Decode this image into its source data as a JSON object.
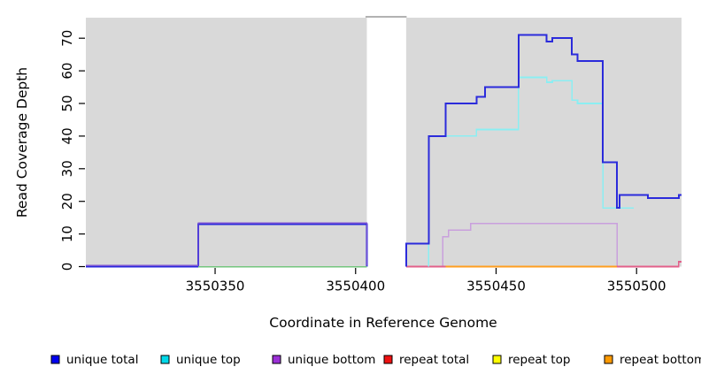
{
  "chart_data": {
    "type": "line",
    "subtype": "step-coverage-plot",
    "title": "",
    "xlabel": "Coordinate in Reference Genome",
    "ylabel": "Read Coverage Depth",
    "xrange": [
      3550304,
      3550516
    ],
    "ylim": [
      0,
      76
    ],
    "grid": "off",
    "panel_background": "#d9d9d9",
    "no_data_gap": {
      "from": 3550404,
      "to": 3550418,
      "fill": "#ffffff",
      "cap_color": "#999999"
    },
    "x_axis": {
      "ticks": [
        {
          "value": 3550350,
          "label": "3550350"
        },
        {
          "value": 3550400,
          "label": "3550400"
        },
        {
          "value": 3550450,
          "label": "3550450"
        },
        {
          "value": 3550500,
          "label": "3550500"
        }
      ]
    },
    "y_axis": {
      "ticks": [
        0,
        10,
        20,
        30,
        40,
        50,
        60,
        70
      ]
    },
    "legend": {
      "position": "bottom",
      "items": [
        {
          "label": "unique total",
          "color": "#0000ee"
        },
        {
          "label": "unique top",
          "color": "#00d8e8"
        },
        {
          "label": "unique bottom",
          "color": "#9b30d6"
        },
        {
          "label": "repeat total",
          "color": "#ee1111"
        },
        {
          "label": "repeat top",
          "color": "#ffff00"
        },
        {
          "label": "repeat bottom",
          "color": "#ff9a00"
        }
      ]
    },
    "baseline_note": "flat segments at depth 0 appear color-blended where several series overlap",
    "lines": [
      {
        "name": "unique-total-left",
        "color": "#2b2bdb",
        "width": 2,
        "points": [
          [
            3550304,
            0
          ],
          [
            3550344,
            0
          ],
          [
            3550344,
            13
          ],
          [
            3550404,
            13
          ],
          [
            3550404,
            0
          ]
        ]
      },
      {
        "name": "unique-bottom-left",
        "color": "#7a52d4",
        "width": 1.4,
        "dy": -1.2,
        "points": [
          [
            3550304,
            0
          ],
          [
            3550344,
            0
          ],
          [
            3550344,
            13
          ],
          [
            3550404,
            13
          ],
          [
            3550404,
            0
          ]
        ]
      },
      {
        "name": "baseline-blend-green-top-strands",
        "color": "#74c67e",
        "width": 1.5,
        "points": [
          [
            3550344,
            0
          ],
          [
            3550404,
            0
          ]
        ]
      },
      {
        "name": "baseline-blend-pink-left",
        "color": "#e2608a",
        "width": 1.6,
        "points": [
          [
            3550418,
            0
          ],
          [
            3550432,
            0
          ]
        ]
      },
      {
        "name": "repeat-bottom-baseline",
        "color": "#ff9e1f",
        "width": 1.8,
        "points": [
          [
            3550432,
            0
          ],
          [
            3550493,
            0
          ]
        ]
      },
      {
        "name": "baseline-blend-pink-right",
        "color": "#e2608a",
        "width": 1.6,
        "points": [
          [
            3550493,
            0
          ],
          [
            3550515,
            0
          ],
          [
            3550515,
            1.5
          ],
          [
            3550516,
            1.5
          ]
        ]
      },
      {
        "name": "unique-bottom-right",
        "color": "#c9a0dd",
        "width": 1.5,
        "dy": -0.8,
        "points": [
          [
            3550431,
            0
          ],
          [
            3550431,
            9
          ],
          [
            3550433,
            9
          ],
          [
            3550433,
            11
          ],
          [
            3550441,
            11
          ],
          [
            3550441,
            13
          ],
          [
            3550493,
            13
          ],
          [
            3550493,
            0
          ]
        ]
      },
      {
        "name": "unique-top",
        "color": "#8beef2",
        "width": 1.6,
        "points": [
          [
            3550426,
            0
          ],
          [
            3550426,
            40
          ],
          [
            3550443,
            40
          ],
          [
            3550443,
            42
          ],
          [
            3550458,
            42
          ],
          [
            3550458,
            58
          ],
          [
            3550468,
            58
          ],
          [
            3550468,
            56.5
          ],
          [
            3550470,
            56.5
          ],
          [
            3550470,
            57
          ],
          [
            3550477,
            57
          ],
          [
            3550477,
            51
          ],
          [
            3550479,
            51
          ],
          [
            3550479,
            50
          ],
          [
            3550488,
            50
          ],
          [
            3550488,
            18
          ],
          [
            3550499,
            18
          ]
        ]
      },
      {
        "name": "unique-total-right",
        "color": "#2b2bdb",
        "width": 2,
        "points": [
          [
            3550418,
            0
          ],
          [
            3550418,
            7
          ],
          [
            3550426,
            7
          ],
          [
            3550426,
            40
          ],
          [
            3550432,
            40
          ],
          [
            3550432,
            50
          ],
          [
            3550443,
            50
          ],
          [
            3550443,
            52
          ],
          [
            3550446,
            52
          ],
          [
            3550446,
            55
          ],
          [
            3550458,
            55
          ],
          [
            3550458,
            71
          ],
          [
            3550468,
            71
          ],
          [
            3550468,
            69
          ],
          [
            3550470,
            69
          ],
          [
            3550470,
            70
          ],
          [
            3550477,
            70
          ],
          [
            3550477,
            65
          ],
          [
            3550479,
            65
          ],
          [
            3550479,
            63
          ],
          [
            3550488,
            63
          ],
          [
            3550488,
            32
          ],
          [
            3550493,
            32
          ],
          [
            3550493,
            18
          ],
          [
            3550494,
            18
          ],
          [
            3550494,
            22
          ],
          [
            3550504,
            22
          ],
          [
            3550504,
            21
          ],
          [
            3550515,
            21
          ],
          [
            3550515,
            22
          ],
          [
            3550516,
            22
          ]
        ]
      }
    ]
  }
}
